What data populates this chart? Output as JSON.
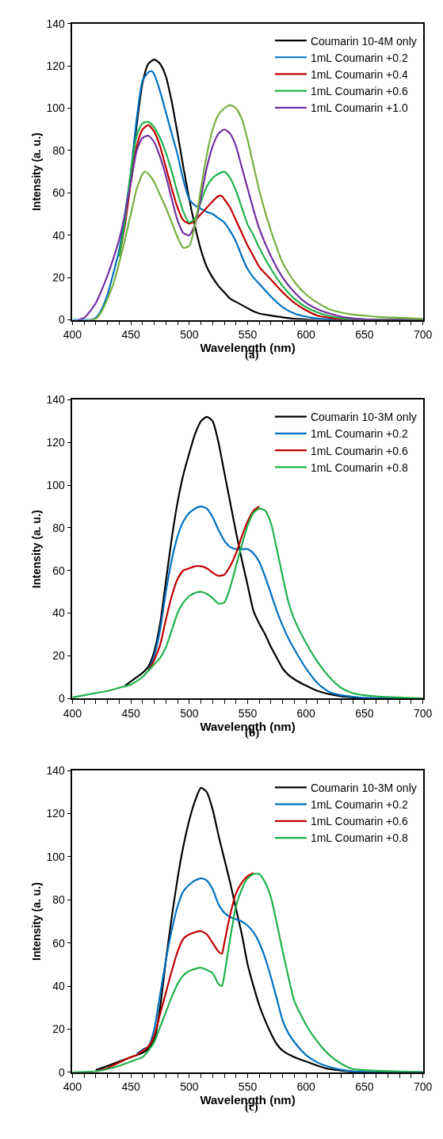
{
  "chart_data": [
    {
      "type": "line",
      "xlabel": "Wavelength (nm)",
      "ylabel": "Intensity (a. u.)",
      "annotations": [
        "(a)"
      ],
      "xlim": [
        400,
        700
      ],
      "ylim": [
        0,
        140
      ],
      "xticks": [
        400,
        {
          "value": 410,
          "label": null
        },
        {
          "value": 420,
          "label": null
        },
        {
          "value": 430,
          "label": null
        },
        {
          "value": 440,
          "label": null
        },
        450,
        {
          "value": 460,
          "label": null
        },
        {
          "value": 470,
          "label": null
        },
        {
          "value": 480,
          "label": null
        },
        {
          "value": 490,
          "label": null
        },
        500,
        {
          "value": 510,
          "label": null
        },
        {
          "value": 520,
          "label": null
        },
        {
          "value": 530,
          "label": null
        },
        {
          "value": 540,
          "label": null
        },
        550,
        {
          "value": 560,
          "label": null
        },
        {
          "value": 570,
          "label": null
        },
        {
          "value": 580,
          "label": null
        },
        {
          "value": 590,
          "label": null
        },
        600,
        {
          "value": 610,
          "label": null
        },
        {
          "value": 620,
          "label": null
        },
        {
          "value": 630,
          "label": null
        },
        {
          "value": 640,
          "label": null
        },
        650,
        {
          "value": 660,
          "label": null
        },
        {
          "value": 670,
          "label": null
        },
        {
          "value": 680,
          "label": null
        },
        {
          "value": 690,
          "label": null
        },
        700
      ],
      "yticks": [
        0,
        20,
        40,
        60,
        80,
        100,
        120,
        140
      ],
      "legend": "top right",
      "grid": false,
      "line_style": "solid",
      "marker": "none",
      "series": [
        {
          "name": "Coumarin 10-4M only",
          "color": "#000000",
          "x": [
            450,
            455,
            460,
            465,
            470,
            475,
            480,
            485,
            490,
            495,
            500,
            505,
            510,
            515,
            520,
            525,
            530,
            535,
            540,
            545,
            550,
            555,
            560,
            570,
            580,
            590,
            600,
            610,
            700
          ],
          "values": [
            68,
            92,
            112,
            121,
            123,
            121,
            115,
            103,
            88,
            72,
            57,
            44,
            33,
            25,
            20,
            16,
            13,
            10,
            8.5,
            7,
            5.5,
            4,
            3,
            2,
            1.2,
            0.5,
            0.2,
            0,
            0
          ]
        },
        {
          "name": "1mL Coumarin +0.2",
          "color": "#0070c0",
          "x": [
            400,
            410,
            415,
            420,
            425,
            430,
            435,
            440,
            445,
            450,
            455,
            460,
            465,
            468,
            470,
            475,
            480,
            485,
            490,
            495,
            500,
            505,
            510,
            515,
            520,
            525,
            530,
            535,
            540,
            545,
            550,
            555,
            560,
            570,
            580,
            590,
            600,
            610,
            620,
            630,
            700
          ],
          "values": [
            0,
            0,
            0,
            1,
            5,
            12,
            22,
            33,
            50,
            70,
            95,
            113,
            117,
            117.5,
            116,
            108,
            98,
            88,
            78,
            66,
            57,
            54,
            52.5,
            51,
            50,
            48,
            46,
            42,
            37,
            30,
            24,
            20,
            17,
            11,
            6,
            3,
            1.5,
            0.6,
            0.2,
            0,
            0
          ]
        },
        {
          "name": "1mL Coumarin +0.4",
          "color": "#c00000",
          "x": [
            440,
            445,
            450,
            455,
            460,
            465,
            470,
            475,
            480,
            485,
            490,
            495,
            500,
            505,
            510,
            515,
            520,
            525,
            528,
            530,
            535,
            540,
            545,
            550,
            555,
            560,
            570,
            580,
            590,
            600,
            610,
            620,
            630,
            640,
            700
          ],
          "values": [
            30,
            45,
            65,
            82,
            90,
            92,
            89,
            82,
            72,
            62,
            53,
            47,
            45.5,
            47,
            50,
            53,
            56,
            58.5,
            58.5,
            57,
            53,
            47,
            41,
            35,
            30,
            25,
            19,
            13,
            8,
            4.5,
            2,
            1,
            0.3,
            0,
            0
          ]
        },
        {
          "name": "1mL Coumarin +0.6",
          "color": "#1fb14a",
          "x": [
            440,
            445,
            450,
            455,
            460,
            465,
            470,
            475,
            480,
            485,
            490,
            495,
            500,
            505,
            510,
            515,
            520,
            525,
            530,
            535,
            540,
            545,
            550,
            555,
            560,
            570,
            580,
            590,
            600,
            610,
            620,
            630,
            640,
            650,
            700
          ],
          "values": [
            30,
            47,
            70,
            87,
            93,
            93.5,
            91,
            86,
            79,
            70,
            60,
            51,
            46,
            48,
            56,
            63,
            67,
            69,
            70,
            67,
            61,
            53,
            45,
            40,
            34,
            24,
            16,
            10,
            6,
            3.5,
            1.8,
            0.8,
            0.3,
            0,
            0
          ]
        },
        {
          "name": "1mL Coumarin +1.0",
          "color": "#7030a0",
          "x": [
            405,
            410,
            415,
            420,
            425,
            430,
            435,
            440,
            445,
            450,
            455,
            460,
            465,
            470,
            475,
            480,
            485,
            490,
            495,
            500,
            505,
            510,
            515,
            520,
            525,
            530,
            535,
            540,
            545,
            550,
            555,
            560,
            570,
            580,
            590,
            600,
            610,
            620,
            630,
            640,
            650,
            660,
            700
          ],
          "values": [
            0,
            1,
            4,
            8,
            14,
            21,
            29,
            38,
            50,
            65,
            80,
            86,
            87,
            84,
            77,
            68,
            57,
            47,
            41,
            40,
            45,
            58,
            72,
            82,
            88,
            90,
            88,
            82,
            72,
            62,
            52,
            43,
            30,
            20,
            13,
            8,
            5,
            3,
            1.5,
            0.7,
            0.3,
            0,
            0
          ]
        },
        {
          "color": "#77b041",
          "x": [
            415,
            420,
            425,
            430,
            435,
            440,
            445,
            450,
            455,
            460,
            462,
            465,
            470,
            475,
            480,
            485,
            490,
            495,
            500,
            505,
            510,
            515,
            520,
            525,
            530,
            535,
            540,
            545,
            550,
            555,
            560,
            570,
            580,
            590,
            600,
            610,
            620,
            630,
            640,
            650,
            660,
            680,
            700
          ],
          "values": [
            0,
            0.5,
            4,
            10,
            17,
            27,
            38,
            50,
            62,
            69,
            70,
            69,
            65,
            59,
            53,
            46,
            39,
            34,
            35,
            45,
            62,
            78,
            90,
            97,
            100,
            101.5,
            100,
            95,
            85,
            73,
            61,
            42,
            27,
            18,
            12,
            8,
            5,
            3.5,
            2.5,
            2,
            1.5,
            1,
            0.5
          ]
        }
      ]
    },
    {
      "type": "line",
      "xlabel": "Wavelength (nm)",
      "ylabel": "Intensity (a. u.)",
      "annotations": [
        "(b)"
      ],
      "xlim": [
        400,
        700
      ],
      "ylim": [
        0,
        140
      ],
      "xticks": [
        400,
        {
          "value": 410,
          "label": null
        },
        {
          "value": 420,
          "label": null
        },
        {
          "value": 430,
          "label": null
        },
        {
          "value": 440,
          "label": null
        },
        450,
        {
          "value": 460,
          "label": null
        },
        {
          "value": 470,
          "label": null
        },
        {
          "value": 480,
          "label": null
        },
        {
          "value": 490,
          "label": null
        },
        500,
        {
          "value": 510,
          "label": null
        },
        {
          "value": 520,
          "label": null
        },
        {
          "value": 530,
          "label": null
        },
        {
          "value": 540,
          "label": null
        },
        550,
        {
          "value": 560,
          "label": null
        },
        {
          "value": 570,
          "label": null
        },
        {
          "value": 580,
          "label": null
        },
        {
          "value": 590,
          "label": null
        },
        600,
        {
          "value": 610,
          "label": null
        },
        {
          "value": 620,
          "label": null
        },
        {
          "value": 630,
          "label": null
        },
        {
          "value": 640,
          "label": null
        },
        650,
        {
          "value": 660,
          "label": null
        },
        {
          "value": 670,
          "label": null
        },
        {
          "value": 680,
          "label": null
        },
        {
          "value": 690,
          "label": null
        },
        700
      ],
      "yticks": [
        0,
        20,
        40,
        60,
        80,
        100,
        120,
        140
      ],
      "legend": "top right",
      "grid": false,
      "line_style": "solid",
      "marker": "none",
      "series": [
        {
          "name": "Coumarin 10-3M only",
          "color": "#000000",
          "x": [
            445,
            450,
            460,
            465,
            470,
            475,
            480,
            485,
            490,
            495,
            500,
            505,
            510,
            515,
            520,
            525,
            530,
            535,
            540,
            545,
            550,
            555,
            560,
            565,
            570,
            575,
            580,
            585,
            590,
            600,
            610,
            620,
            630,
            640,
            650,
            700
          ],
          "values": [
            6,
            8,
            12,
            15,
            22,
            35,
            55,
            75,
            92,
            105,
            115,
            124,
            130,
            132,
            130,
            120,
            106,
            92,
            78,
            65,
            53,
            41,
            35,
            30,
            24,
            19,
            14,
            11,
            9,
            6,
            3.5,
            2,
            1,
            0.5,
            0,
            0
          ]
        },
        {
          "name": "1mL Coumarin +0.2",
          "color": "#0070c0",
          "x": [
            465,
            470,
            475,
            480,
            485,
            490,
            495,
            500,
            505,
            510,
            515,
            520,
            525,
            530,
            535,
            540,
            545,
            550,
            555,
            560,
            565,
            570,
            575,
            580,
            585,
            590,
            600,
            610,
            620,
            630,
            640,
            650,
            700
          ],
          "values": [
            13,
            20,
            32,
            50,
            65,
            76,
            83,
            87,
            89,
            90,
            89,
            85,
            79,
            74,
            71,
            70,
            70,
            70,
            68,
            64,
            57,
            49,
            41,
            34,
            28,
            23,
            14,
            7,
            3,
            1.5,
            0.8,
            0.3,
            0
          ]
        },
        {
          "name": "1mL Coumarin +0.6",
          "color": "#c00000",
          "x": [
            465,
            470,
            475,
            480,
            485,
            490,
            495,
            500,
            505,
            510,
            515,
            520,
            525,
            530,
            535,
            540,
            545,
            550,
            555,
            560
          ],
          "values": [
            13,
            18,
            25,
            37,
            48,
            56,
            60,
            61,
            62,
            62,
            61,
            59,
            57.5,
            58,
            62,
            68,
            76,
            83,
            88,
            90
          ]
        },
        {
          "name": "1mL Coumarin +0.8",
          "color": "#1fb14a",
          "x": [
            400,
            410,
            420,
            430,
            440,
            450,
            460,
            465,
            470,
            475,
            480,
            485,
            490,
            495,
            500,
            505,
            510,
            515,
            520,
            525,
            530,
            535,
            540,
            545,
            550,
            555,
            560,
            565,
            570,
            575,
            580,
            585,
            590,
            600,
            610,
            620,
            630,
            640,
            650,
            660,
            680,
            700
          ],
          "values": [
            0.5,
            1.5,
            2.5,
            3.5,
            5,
            6.5,
            10,
            13,
            16,
            19,
            24,
            32,
            40,
            45,
            48,
            49.5,
            50,
            49,
            47,
            44.5,
            45,
            52,
            62,
            72,
            81,
            87,
            89,
            88,
            82,
            70,
            57,
            45,
            37,
            26,
            17,
            10,
            5,
            2.5,
            1.5,
            1,
            0.5,
            0
          ]
        }
      ]
    },
    {
      "type": "line",
      "xlabel": "Wavelength (nm)",
      "ylabel": "Intensity (a. u.)",
      "annotations": [
        "(c)"
      ],
      "xlim": [
        400,
        700
      ],
      "ylim": [
        0,
        140
      ],
      "xticks": [
        400,
        {
          "value": 410,
          "label": null
        },
        {
          "value": 420,
          "label": null
        },
        {
          "value": 430,
          "label": null
        },
        {
          "value": 440,
          "label": null
        },
        450,
        {
          "value": 460,
          "label": null
        },
        {
          "value": 470,
          "label": null
        },
        {
          "value": 480,
          "label": null
        },
        {
          "value": 490,
          "label": null
        },
        500,
        {
          "value": 510,
          "label": null
        },
        {
          "value": 520,
          "label": null
        },
        {
          "value": 530,
          "label": null
        },
        {
          "value": 540,
          "label": null
        },
        550,
        {
          "value": 560,
          "label": null
        },
        {
          "value": 570,
          "label": null
        },
        {
          "value": 580,
          "label": null
        },
        {
          "value": 590,
          "label": null
        },
        600,
        {
          "value": 610,
          "label": null
        },
        {
          "value": 620,
          "label": null
        },
        {
          "value": 630,
          "label": null
        },
        {
          "value": 640,
          "label": null
        },
        650,
        {
          "value": 660,
          "label": null
        },
        {
          "value": 670,
          "label": null
        },
        {
          "value": 680,
          "label": null
        },
        {
          "value": 690,
          "label": null
        },
        700
      ],
      "yticks": [
        0,
        20,
        40,
        60,
        80,
        100,
        120,
        140
      ],
      "legend": "top right",
      "grid": false,
      "line_style": "solid",
      "marker": "none",
      "series": [
        {
          "name": "Coumarin 10-3M only",
          "color": "#000000",
          "x": [
            420,
            430,
            440,
            450,
            460,
            465,
            470,
            475,
            480,
            485,
            490,
            495,
            500,
            505,
            510,
            515,
            520,
            525,
            530,
            535,
            540,
            545,
            550,
            555,
            560,
            565,
            570,
            575,
            580,
            590,
            600,
            610,
            620,
            630,
            640,
            650,
            700
          ],
          "values": [
            1,
            3,
            5,
            7,
            9,
            11,
            15,
            30,
            52,
            72,
            90,
            105,
            117,
            126,
            132,
            130,
            122,
            110,
            99,
            88,
            76,
            64,
            50,
            40,
            31,
            24,
            18,
            13,
            10,
            7,
            5,
            3,
            1.5,
            0.8,
            0.3,
            0,
            0
          ]
        },
        {
          "name": "1mL Coumarin +0.2",
          "color": "#0070c0",
          "x": [
            455,
            460,
            465,
            470,
            475,
            480,
            485,
            490,
            495,
            500,
            505,
            510,
            515,
            520,
            525,
            530,
            535,
            540,
            545,
            550,
            555,
            560,
            565,
            570,
            575,
            580,
            585,
            590,
            600,
            610,
            620,
            630,
            640,
            650,
            700
          ],
          "values": [
            8.5,
            10.5,
            12,
            20,
            36,
            52,
            66,
            77,
            84,
            87,
            89,
            90,
            89,
            85,
            78,
            74,
            72,
            71,
            70,
            68,
            65,
            60,
            53,
            44,
            34,
            24,
            18,
            14,
            8,
            4.5,
            2.5,
            1.2,
            0.5,
            0.2,
            0
          ]
        },
        {
          "name": "1mL Coumarin +0.6",
          "color": "#c00000",
          "x": [
            420,
            430,
            440,
            450,
            455,
            460,
            465,
            470,
            475,
            480,
            485,
            490,
            495,
            500,
            505,
            510,
            515,
            520,
            525,
            528,
            530,
            535,
            540,
            545,
            550,
            555
          ],
          "values": [
            0.5,
            2,
            4.5,
            7,
            8,
            10,
            12,
            17,
            27,
            37,
            47,
            56,
            62,
            64,
            65,
            65.5,
            64,
            60,
            56,
            55,
            60,
            73,
            83,
            88,
            91,
            92.5
          ]
        },
        {
          "name": "1mL Coumarin +0.8",
          "color": "#1fb14a",
          "x": [
            400,
            410,
            420,
            430,
            440,
            450,
            455,
            460,
            465,
            470,
            475,
            480,
            485,
            490,
            495,
            500,
            505,
            510,
            515,
            520,
            525,
            528,
            530,
            535,
            540,
            545,
            550,
            555,
            560,
            565,
            570,
            575,
            580,
            585,
            590,
            600,
            610,
            620,
            630,
            640,
            650,
            660,
            680,
            700
          ],
          "values": [
            0,
            0.2,
            0.5,
            1.5,
            3,
            5,
            6,
            7,
            10,
            14,
            21,
            28,
            35,
            41,
            45,
            47,
            48,
            48.5,
            47.5,
            46,
            41,
            40,
            45,
            62,
            77,
            85,
            90,
            92,
            92,
            88,
            81,
            69,
            56,
            44,
            33,
            22,
            14,
            8,
            4,
            1.5,
            1,
            0.7,
            0.4,
            0
          ]
        }
      ]
    }
  ]
}
